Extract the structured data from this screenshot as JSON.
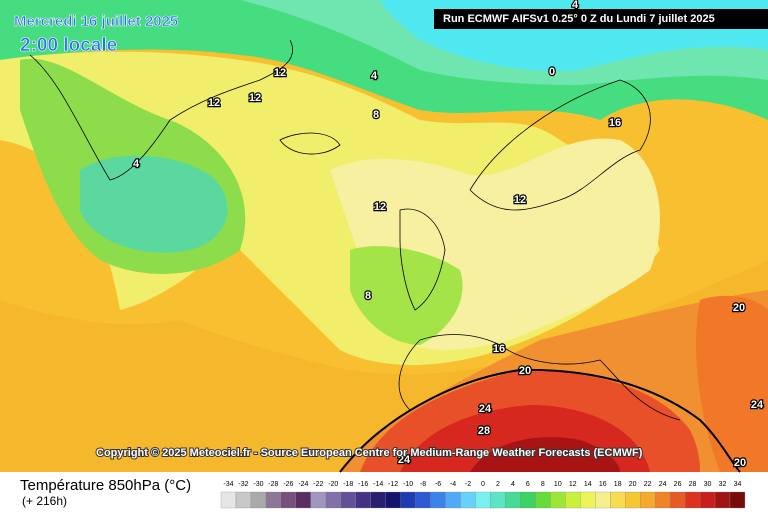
{
  "header": {
    "date": "Mercredi 16 juillet 2025",
    "time": "2:00 locale",
    "run": "Run ECMWF AIFSv1 0.25° 0 Z du Lundi 7 juillet 2025"
  },
  "copyright": "Copyright © 2025 Meteociel.fr - Source European Centre for Medium-Range Weather Forecasts (ECMWF)",
  "legend": {
    "title": "Température 850hPa (°C)",
    "subtitle": "(+ 216h)",
    "values": [
      -34,
      -32,
      -30,
      -28,
      -26,
      -24,
      -22,
      -20,
      -18,
      -16,
      -14,
      -12,
      -10,
      -8,
      -6,
      -4,
      -2,
      0,
      2,
      4,
      6,
      8,
      10,
      12,
      14,
      16,
      18,
      20,
      22,
      24,
      26,
      28,
      30,
      32,
      34
    ],
    "colors": [
      "#e6e6e6",
      "#c8c8c8",
      "#aaaaaa",
      "#8c7896",
      "#78507d",
      "#5a2d64",
      "#a096be",
      "#8270aa",
      "#645096",
      "#463282",
      "#281e6e",
      "#14146e",
      "#1e3cb4",
      "#2d5ad2",
      "#3c82eb",
      "#50aaf5",
      "#64d2fa",
      "#78f0f0",
      "#5ae6c3",
      "#46dc96",
      "#3cd264",
      "#64dc3c",
      "#9be637",
      "#c8f03c",
      "#ebf55a",
      "#f5f08c",
      "#f5dc50",
      "#f5c832",
      "#f5aa2d",
      "#f08228",
      "#e65a23",
      "#dc321e",
      "#c81e1e",
      "#a01414",
      "#780a0a"
    ]
  },
  "contours": [
    4,
    0,
    4,
    8,
    12,
    12,
    12,
    4,
    16,
    12,
    12,
    8,
    16,
    20,
    20,
    24,
    28,
    24,
    20,
    24
  ]
}
